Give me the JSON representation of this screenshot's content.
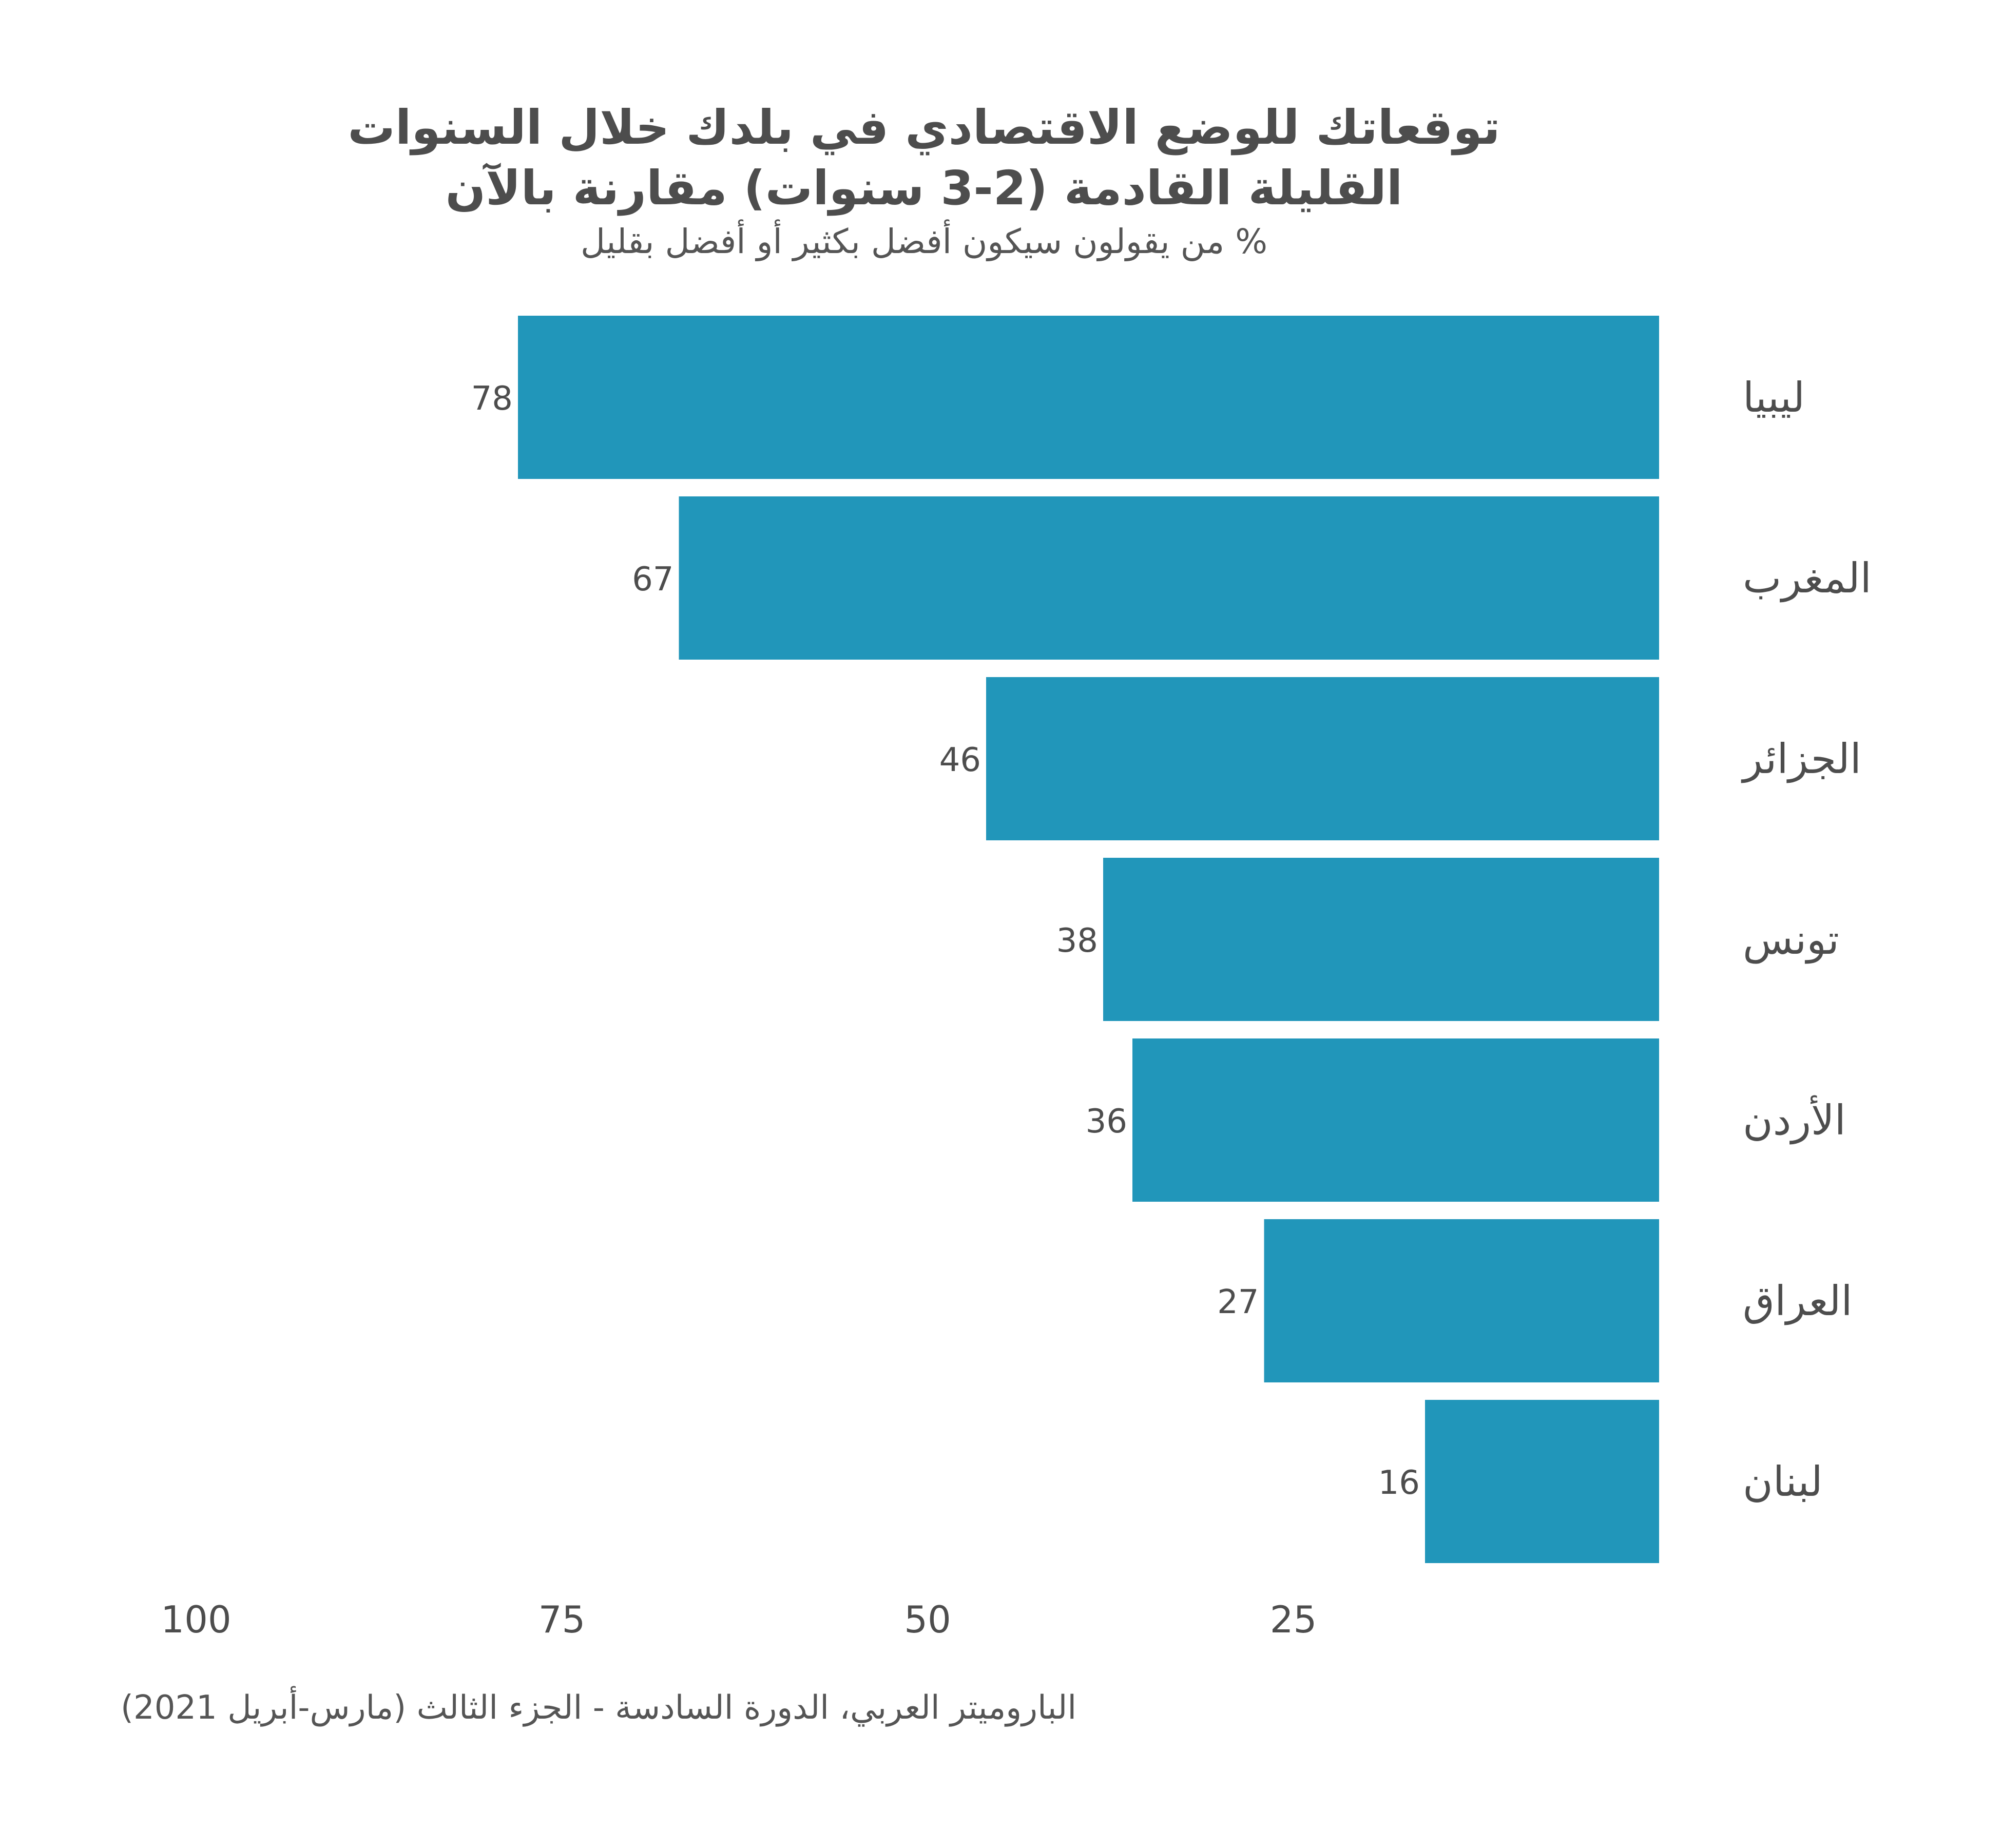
{
  "chart_data": {
    "type": "bar",
    "orientation": "horizontal",
    "title": "توقعاتك للوضع الاقتصادي في بلدك خلال السنوات القليلة القادمة (2-3 سنوات) مقارنة بالآن",
    "subtitle": "% من يقولون سيكون أفضل بكثير أو أفضل بقليل",
    "categories": [
      "ليبيا",
      "المغرب",
      "الجزائر",
      "تونس",
      "الأردن",
      "العراق",
      "لبنان"
    ],
    "values": [
      78,
      67,
      46,
      38,
      36,
      27,
      16
    ],
    "data_labels": [
      "78",
      "67",
      "46",
      "38",
      "36",
      "27",
      "16"
    ],
    "x_ticks": [
      100,
      75,
      50,
      25
    ],
    "x_tick_labels": [
      "100",
      "75",
      "50",
      "25"
    ],
    "xlim": [
      0,
      100
    ],
    "x_reversed": true,
    "grid": false,
    "legend": "none",
    "bar_color": "#2196BA",
    "text_color": "#4D4D4D",
    "source": "الباروميتر العربي، الدورة السادسة - الجزء الثالث (مارس-أبريل 2021)"
  }
}
